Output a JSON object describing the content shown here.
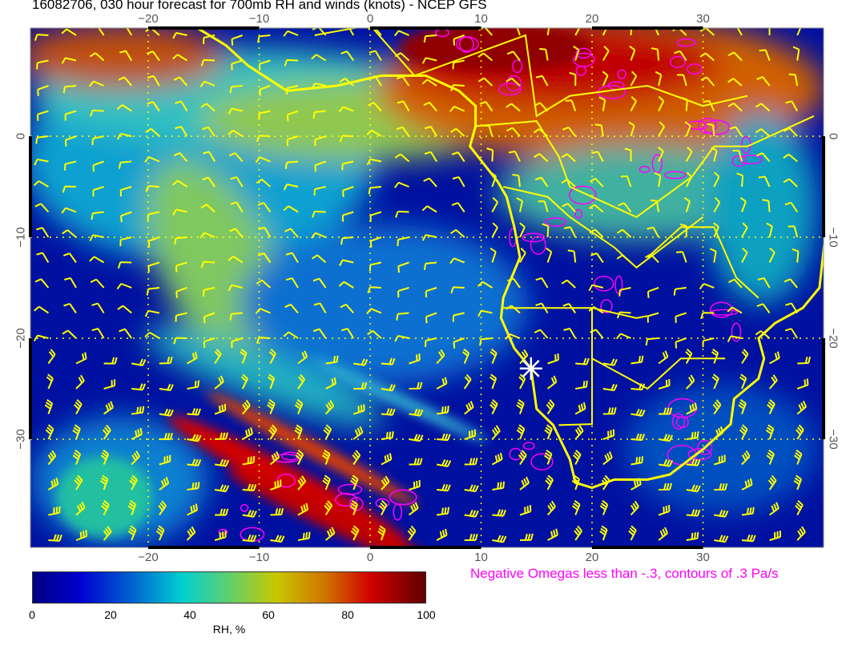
{
  "title": "16082706, 030 hour forecast for 700mb RH and winds (knots) - NCEP GFS",
  "lon_ticks": [
    "−20",
    "−10",
    "0",
    "10",
    "20",
    "30"
  ],
  "lat_ticks": [
    "0",
    "−10",
    "−20",
    "−30"
  ],
  "colorbar": {
    "labels": [
      "0",
      "20",
      "40",
      "60",
      "80",
      "100"
    ],
    "unit": "RH, %",
    "colors": [
      "#00007f",
      "#0000d0",
      "#00d0d0",
      "#c8c800",
      "#d00000",
      "#600000"
    ]
  },
  "omega_note": "Negative Omegas less than -.3, contours of .3 Pa/s",
  "colors": {
    "coastline": "#ffff00",
    "wind_barbs": "#ffff00",
    "omega_contours": "#ff00ff",
    "marker": "#ffffff"
  }
}
